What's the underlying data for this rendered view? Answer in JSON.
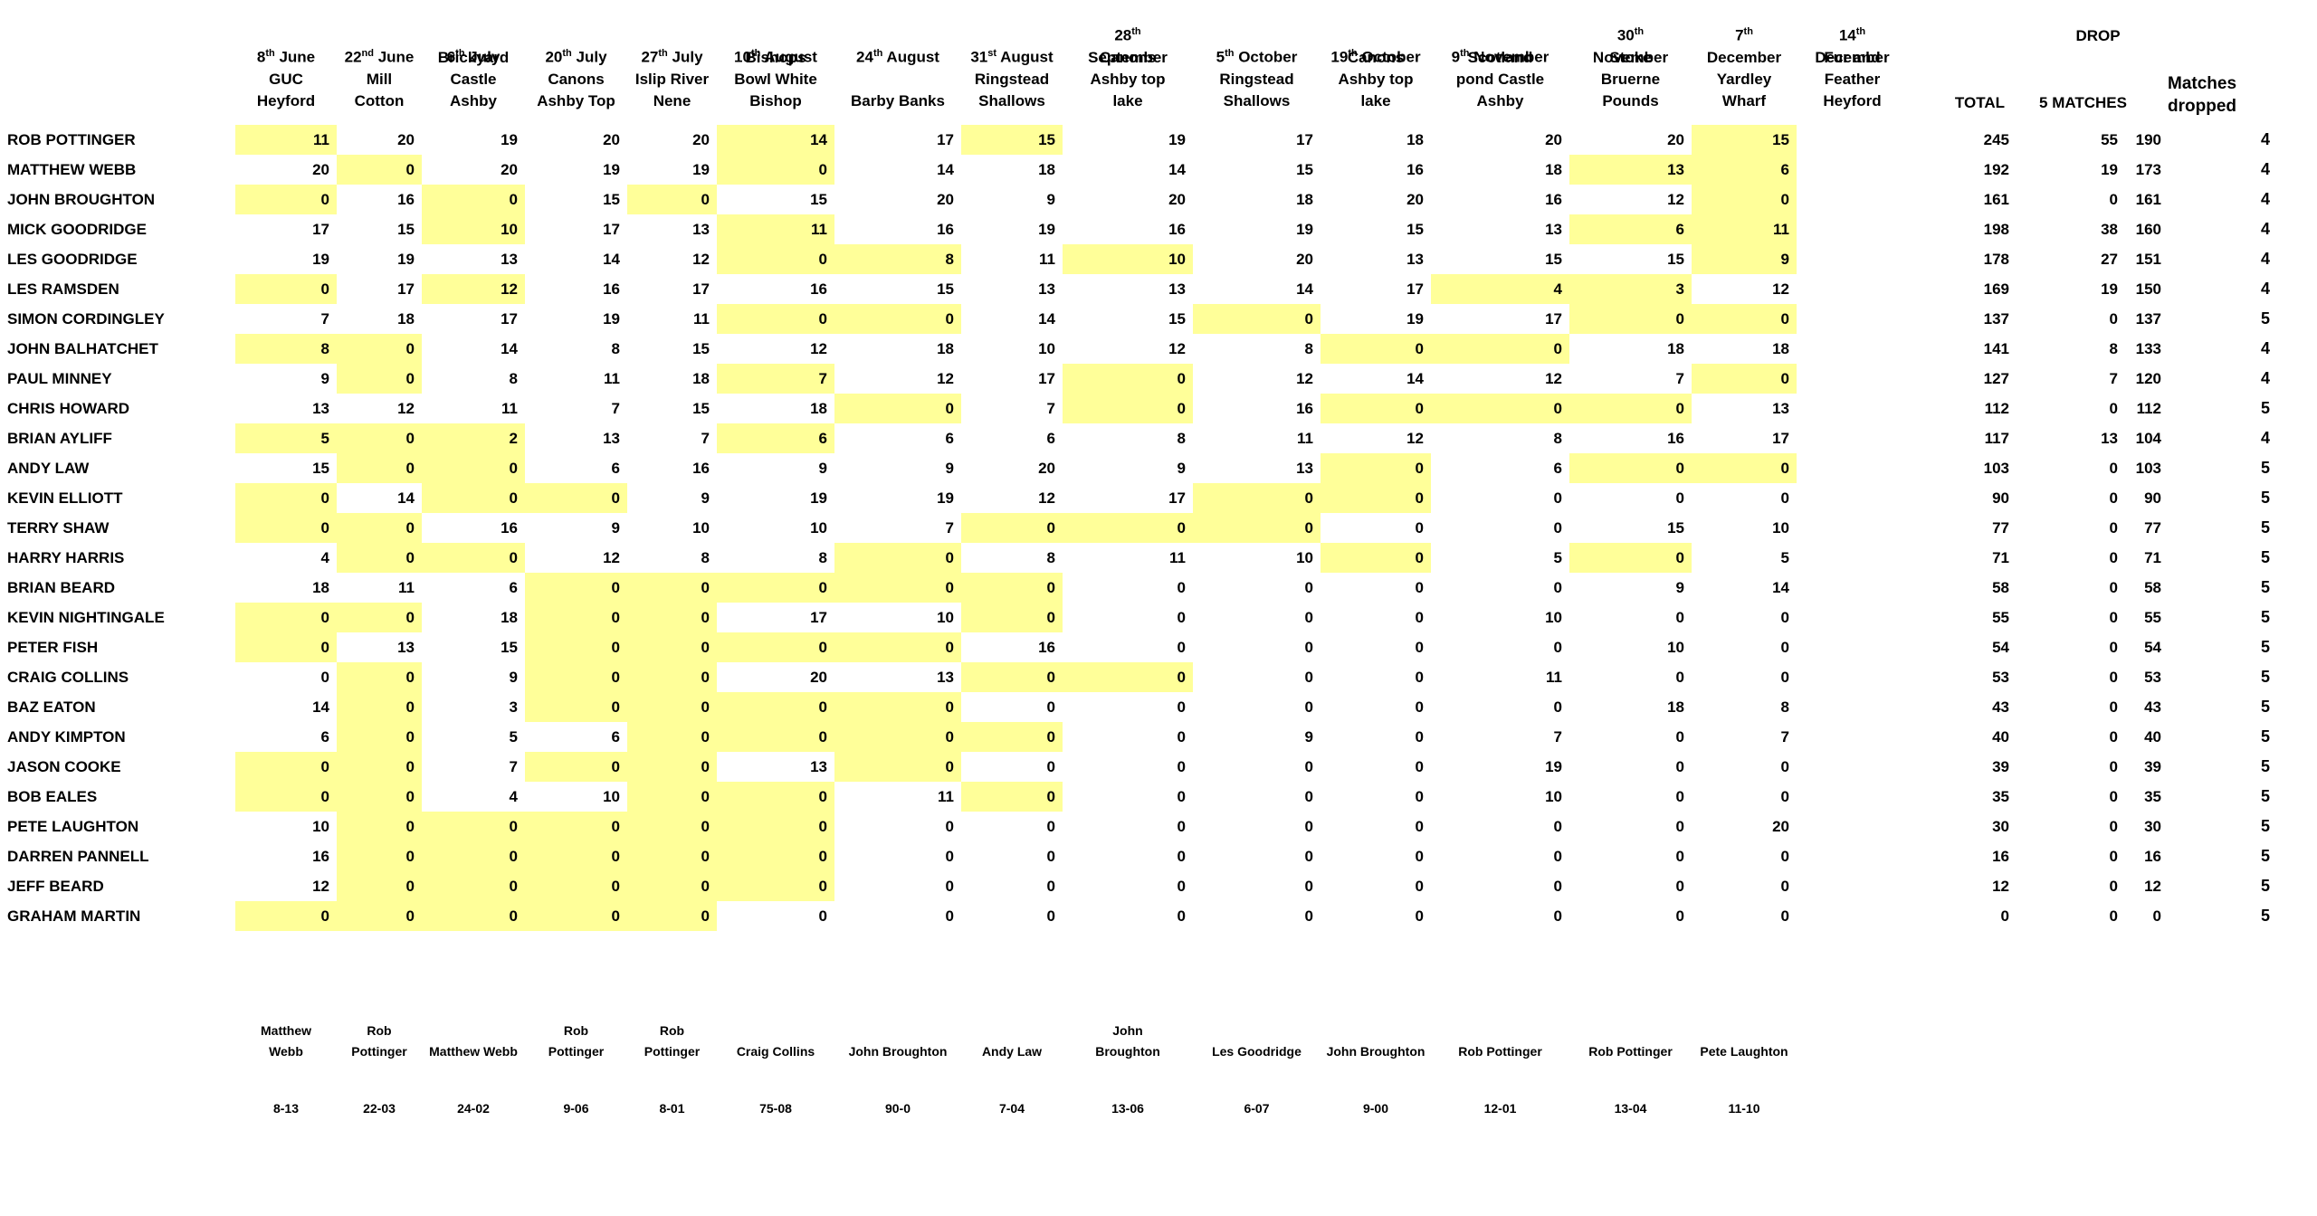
{
  "sheet": {
    "highlight_color": "#FFFF99",
    "text_color": "#000000",
    "background_color": "#FFFFFF"
  },
  "summary_headers": {
    "drop": "DROP",
    "total": "TOTAL",
    "five_matches": "5 MATCHES",
    "matches_dropped_line1": "Matches",
    "matches_dropped_line2": "dropped"
  },
  "columns": [
    {
      "date_lines": [
        "8th June"
      ],
      "venue_lines": [
        "GUC",
        "Heyford"
      ]
    },
    {
      "date_lines": [
        "22nd June"
      ],
      "venue_lines": [
        "Mill",
        "Cotton"
      ]
    },
    {
      "date_lines": [
        "6th July"
      ],
      "venue_lines": [
        "Brickyard",
        "Castle",
        "Ashby"
      ]
    },
    {
      "date_lines": [
        "20th July"
      ],
      "venue_lines": [
        "Canons",
        "Ashby Top"
      ]
    },
    {
      "date_lines": [
        "27th July"
      ],
      "venue_lines": [
        "Islip River",
        "Nene"
      ]
    },
    {
      "date_lines": [
        "10th August"
      ],
      "venue_lines": [
        "Bishops",
        "Bowl White",
        "Bishop"
      ]
    },
    {
      "date_lines": [
        "24th August"
      ],
      "venue_lines": [
        "Barby Banks"
      ]
    },
    {
      "date_lines": [
        "31st August"
      ],
      "venue_lines": [
        "Ringstead",
        "Shallows"
      ]
    },
    {
      "date_lines": [
        "28th",
        "September"
      ],
      "venue_lines": [
        "Canons",
        "Ashby top",
        "lake"
      ]
    },
    {
      "date_lines": [
        "5th October"
      ],
      "venue_lines": [
        "Ringstead",
        "Shallows"
      ]
    },
    {
      "date_lines": [
        "19th October"
      ],
      "venue_lines": [
        "Canons",
        "Ashby top",
        "lake"
      ]
    },
    {
      "date_lines": [
        "9th November"
      ],
      "venue_lines": [
        "Scotland",
        "pond Castle",
        "Ashby"
      ]
    },
    {
      "date_lines": [
        "30th",
        "November"
      ],
      "venue_lines": [
        "Stoke",
        "Bruerne",
        "Pounds"
      ]
    },
    {
      "date_lines": [
        "7th",
        "December"
      ],
      "venue_lines": [
        "Yardley",
        "Wharf"
      ]
    },
    {
      "date_lines": [
        "14th",
        "December"
      ],
      "venue_lines": [
        "Fur and",
        "Feather",
        "Heyford"
      ]
    }
  ],
  "players": [
    {
      "name": "ROB POTTINGER",
      "scores": [
        11,
        20,
        19,
        20,
        20,
        14,
        17,
        15,
        19,
        17,
        18,
        20,
        20,
        15
      ],
      "dropped_cols": [
        0,
        5,
        7,
        13
      ],
      "total": 245,
      "drop_score": 55,
      "best_score": 190,
      "matches_dropped": 4
    },
    {
      "name": "MATTHEW WEBB",
      "scores": [
        20,
        0,
        20,
        19,
        19,
        0,
        14,
        18,
        14,
        15,
        16,
        18,
        13,
        6
      ],
      "dropped_cols": [
        1,
        5,
        12,
        13
      ],
      "total": 192,
      "drop_score": 19,
      "best_score": 173,
      "matches_dropped": 4
    },
    {
      "name": "JOHN BROUGHTON",
      "scores": [
        0,
        16,
        0,
        15,
        0,
        15,
        20,
        9,
        20,
        18,
        20,
        16,
        12,
        0
      ],
      "dropped_cols": [
        0,
        2,
        4,
        13
      ],
      "total": 161,
      "drop_score": 0,
      "best_score": 161,
      "matches_dropped": 4
    },
    {
      "name": "MICK GOODRIDGE",
      "scores": [
        17,
        15,
        10,
        17,
        13,
        11,
        16,
        19,
        16,
        19,
        15,
        13,
        6,
        11
      ],
      "dropped_cols": [
        2,
        5,
        12,
        13
      ],
      "total": 198,
      "drop_score": 38,
      "best_score": 160,
      "matches_dropped": 4
    },
    {
      "name": "LES GOODRIDGE",
      "scores": [
        19,
        19,
        13,
        14,
        12,
        0,
        8,
        11,
        10,
        20,
        13,
        15,
        15,
        9
      ],
      "dropped_cols": [
        5,
        6,
        8,
        13
      ],
      "total": 178,
      "drop_score": 27,
      "best_score": 151,
      "matches_dropped": 4
    },
    {
      "name": "LES RAMSDEN",
      "scores": [
        0,
        17,
        12,
        16,
        17,
        16,
        15,
        13,
        13,
        14,
        17,
        4,
        3,
        12
      ],
      "dropped_cols": [
        0,
        2,
        11,
        12
      ],
      "total": 169,
      "drop_score": 19,
      "best_score": 150,
      "matches_dropped": 4
    },
    {
      "name": "SIMON CORDINGLEY",
      "scores": [
        7,
        18,
        17,
        19,
        11,
        0,
        0,
        14,
        15,
        0,
        19,
        17,
        0,
        0
      ],
      "dropped_cols": [
        5,
        6,
        9,
        12,
        13
      ],
      "total": 137,
      "drop_score": 0,
      "best_score": 137,
      "matches_dropped": 5
    },
    {
      "name": "JOHN BALHATCHET",
      "scores": [
        8,
        0,
        14,
        8,
        15,
        12,
        18,
        10,
        12,
        8,
        0,
        0,
        18,
        18
      ],
      "dropped_cols": [
        0,
        1,
        10,
        11
      ],
      "total": 141,
      "drop_score": 8,
      "best_score": 133,
      "matches_dropped": 4
    },
    {
      "name": "PAUL MINNEY",
      "scores": [
        9,
        0,
        8,
        11,
        18,
        7,
        12,
        17,
        0,
        12,
        14,
        12,
        7,
        0
      ],
      "dropped_cols": [
        1,
        5,
        8,
        13
      ],
      "total": 127,
      "drop_score": 7,
      "best_score": 120,
      "matches_dropped": 4
    },
    {
      "name": "CHRIS HOWARD",
      "scores": [
        13,
        12,
        11,
        7,
        15,
        18,
        0,
        7,
        0,
        16,
        0,
        0,
        0,
        13
      ],
      "dropped_cols": [
        6,
        8,
        10,
        11,
        12
      ],
      "total": 112,
      "drop_score": 0,
      "best_score": 112,
      "matches_dropped": 5
    },
    {
      "name": "BRIAN AYLIFF",
      "scores": [
        5,
        0,
        2,
        13,
        7,
        6,
        6,
        6,
        8,
        11,
        12,
        8,
        16,
        17
      ],
      "dropped_cols": [
        0,
        1,
        2,
        5
      ],
      "total": 117,
      "drop_score": 13,
      "best_score": 104,
      "matches_dropped": 4
    },
    {
      "name": "ANDY LAW",
      "scores": [
        15,
        0,
        0,
        6,
        16,
        9,
        9,
        20,
        9,
        13,
        0,
        6,
        0,
        0
      ],
      "dropped_cols": [
        1,
        2,
        10,
        12,
        13
      ],
      "total": 103,
      "drop_score": 0,
      "best_score": 103,
      "matches_dropped": 5
    },
    {
      "name": "KEVIN ELLIOTT",
      "scores": [
        0,
        14,
        0,
        0,
        9,
        19,
        19,
        12,
        17,
        0,
        0,
        0,
        0,
        0
      ],
      "dropped_cols": [
        0,
        2,
        3,
        9,
        10
      ],
      "total": 90,
      "drop_score": 0,
      "best_score": 90,
      "matches_dropped": 5
    },
    {
      "name": "TERRY SHAW",
      "scores": [
        0,
        0,
        16,
        9,
        10,
        10,
        7,
        0,
        0,
        0,
        0,
        0,
        15,
        10
      ],
      "dropped_cols": [
        0,
        1,
        7,
        8,
        9
      ],
      "total": 77,
      "drop_score": 0,
      "best_score": 77,
      "matches_dropped": 5
    },
    {
      "name": "HARRY HARRIS",
      "scores": [
        4,
        0,
        0,
        12,
        8,
        8,
        0,
        8,
        11,
        10,
        0,
        5,
        0,
        5
      ],
      "dropped_cols": [
        1,
        2,
        6,
        10,
        12
      ],
      "total": 71,
      "drop_score": 0,
      "best_score": 71,
      "matches_dropped": 5
    },
    {
      "name": "BRIAN BEARD",
      "scores": [
        18,
        11,
        6,
        0,
        0,
        0,
        0,
        0,
        0,
        0,
        0,
        0,
        9,
        14
      ],
      "dropped_cols": [
        3,
        4,
        5,
        6,
        7
      ],
      "total": 58,
      "drop_score": 0,
      "best_score": 58,
      "matches_dropped": 5
    },
    {
      "name": "KEVIN NIGHTINGALE",
      "scores": [
        0,
        0,
        18,
        0,
        0,
        17,
        10,
        0,
        0,
        0,
        0,
        10,
        0,
        0
      ],
      "dropped_cols": [
        0,
        1,
        3,
        4,
        7
      ],
      "total": 55,
      "drop_score": 0,
      "best_score": 55,
      "matches_dropped": 5
    },
    {
      "name": "PETER FISH",
      "scores": [
        0,
        13,
        15,
        0,
        0,
        0,
        0,
        16,
        0,
        0,
        0,
        0,
        10,
        0
      ],
      "dropped_cols": [
        0,
        3,
        4,
        5,
        6
      ],
      "total": 54,
      "drop_score": 0,
      "best_score": 54,
      "matches_dropped": 5
    },
    {
      "name": "CRAIG COLLINS",
      "scores": [
        0,
        0,
        9,
        0,
        0,
        20,
        13,
        0,
        0,
        0,
        0,
        11,
        0,
        0
      ],
      "dropped_cols": [
        1,
        3,
        4,
        7,
        8
      ],
      "total": 53,
      "drop_score": 0,
      "best_score": 53,
      "matches_dropped": 5
    },
    {
      "name": "BAZ EATON",
      "scores": [
        14,
        0,
        3,
        0,
        0,
        0,
        0,
        0,
        0,
        0,
        0,
        0,
        18,
        8
      ],
      "dropped_cols": [
        1,
        3,
        4,
        5,
        6
      ],
      "total": 43,
      "drop_score": 0,
      "best_score": 43,
      "matches_dropped": 5
    },
    {
      "name": "ANDY KIMPTON",
      "scores": [
        6,
        0,
        5,
        6,
        0,
        0,
        0,
        0,
        0,
        9,
        0,
        7,
        0,
        7
      ],
      "dropped_cols": [
        1,
        4,
        5,
        6,
        7
      ],
      "total": 40,
      "drop_score": 0,
      "best_score": 40,
      "matches_dropped": 5
    },
    {
      "name": "JASON COOKE",
      "scores": [
        0,
        0,
        7,
        0,
        0,
        13,
        0,
        0,
        0,
        0,
        0,
        19,
        0,
        0
      ],
      "dropped_cols": [
        0,
        1,
        3,
        4,
        6
      ],
      "total": 39,
      "drop_score": 0,
      "best_score": 39,
      "matches_dropped": 5
    },
    {
      "name": "BOB EALES",
      "scores": [
        0,
        0,
        4,
        10,
        0,
        0,
        11,
        0,
        0,
        0,
        0,
        10,
        0,
        0
      ],
      "dropped_cols": [
        0,
        1,
        4,
        5,
        7
      ],
      "total": 35,
      "drop_score": 0,
      "best_score": 35,
      "matches_dropped": 5
    },
    {
      "name": "PETE LAUGHTON",
      "scores": [
        10,
        0,
        0,
        0,
        0,
        0,
        0,
        0,
        0,
        0,
        0,
        0,
        0,
        20
      ],
      "dropped_cols": [
        1,
        2,
        3,
        4,
        5
      ],
      "total": 30,
      "drop_score": 0,
      "best_score": 30,
      "matches_dropped": 5
    },
    {
      "name": "DARREN PANNELL",
      "scores": [
        16,
        0,
        0,
        0,
        0,
        0,
        0,
        0,
        0,
        0,
        0,
        0,
        0,
        0
      ],
      "dropped_cols": [
        1,
        2,
        3,
        4,
        5
      ],
      "total": 16,
      "drop_score": 0,
      "best_score": 16,
      "matches_dropped": 5
    },
    {
      "name": "JEFF BEARD",
      "scores": [
        12,
        0,
        0,
        0,
        0,
        0,
        0,
        0,
        0,
        0,
        0,
        0,
        0,
        0
      ],
      "dropped_cols": [
        1,
        2,
        3,
        4,
        5
      ],
      "total": 12,
      "drop_score": 0,
      "best_score": 12,
      "matches_dropped": 5
    },
    {
      "name": "GRAHAM MARTIN",
      "scores": [
        0,
        0,
        0,
        0,
        0,
        0,
        0,
        0,
        0,
        0,
        0,
        0,
        0,
        0
      ],
      "dropped_cols": [
        0,
        1,
        2,
        3,
        4
      ],
      "total": 0,
      "drop_score": 0,
      "best_score": 0,
      "matches_dropped": 5
    }
  ],
  "match_winners": [
    {
      "name_lines": [
        "Matthew",
        "Webb"
      ],
      "score": "8-13"
    },
    {
      "name_lines": [
        "Rob",
        "Pottinger"
      ],
      "score": "22-03"
    },
    {
      "name_lines": [
        "Matthew Webb"
      ],
      "score": "24-02"
    },
    {
      "name_lines": [
        "Rob",
        "Pottinger"
      ],
      "score": "9-06"
    },
    {
      "name_lines": [
        "Rob",
        "Pottinger"
      ],
      "score": "8-01"
    },
    {
      "name_lines": [
        "Craig Collins"
      ],
      "score": "75-08"
    },
    {
      "name_lines": [
        "John Broughton"
      ],
      "score": "90-0"
    },
    {
      "name_lines": [
        "Andy Law"
      ],
      "score": "7-04"
    },
    {
      "name_lines": [
        "John",
        "Broughton"
      ],
      "score": "13-06"
    },
    {
      "name_lines": [
        "Les Goodridge"
      ],
      "score": "6-07"
    },
    {
      "name_lines": [
        "John Broughton"
      ],
      "score": "9-00"
    },
    {
      "name_lines": [
        "Rob Pottinger"
      ],
      "score": "12-01"
    },
    {
      "name_lines": [
        "Rob Pottinger"
      ],
      "score": "13-04"
    },
    {
      "name_lines": [
        "Pete Laughton"
      ],
      "score": "11-10"
    }
  ]
}
